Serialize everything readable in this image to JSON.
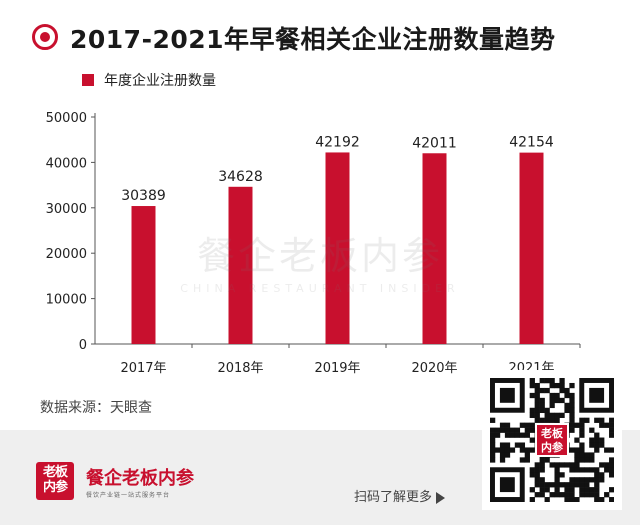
{
  "header": {
    "title": "2017-2021年早餐相关企业注册数量趋势",
    "icon": "record-circle-icon"
  },
  "colors": {
    "accent": "#c8102e",
    "axis": "#555555"
  },
  "chart_data": {
    "type": "bar",
    "title": "2017-2021年早餐相关企业注册数量趋势",
    "categories": [
      "2017年",
      "2018年",
      "2019年",
      "2020年",
      "2021年"
    ],
    "series": [
      {
        "name": "年度企业注册数量",
        "values": [
          30389,
          34628,
          42192,
          42011,
          42154
        ]
      }
    ],
    "xlabel": "",
    "ylabel": "",
    "ylim": [
      0,
      50000
    ],
    "yticks": [
      0,
      10000,
      20000,
      30000,
      40000,
      50000
    ],
    "legend": "top-left",
    "grid": false,
    "data_labels": true
  },
  "watermark": {
    "cn": "餐企老板内参",
    "en": "CHINA RESTAURANT INSIDER"
  },
  "source": "数据来源：天眼查",
  "footer": {
    "logo_text_top": "老板",
    "logo_text_bottom": "内参",
    "brand_name": "餐企老板内参",
    "tagline": "餐饮产业链一站式服务平台",
    "scan_text": "扫码了解更多",
    "qr_badge_top": "老板",
    "qr_badge_bottom": "内参"
  }
}
